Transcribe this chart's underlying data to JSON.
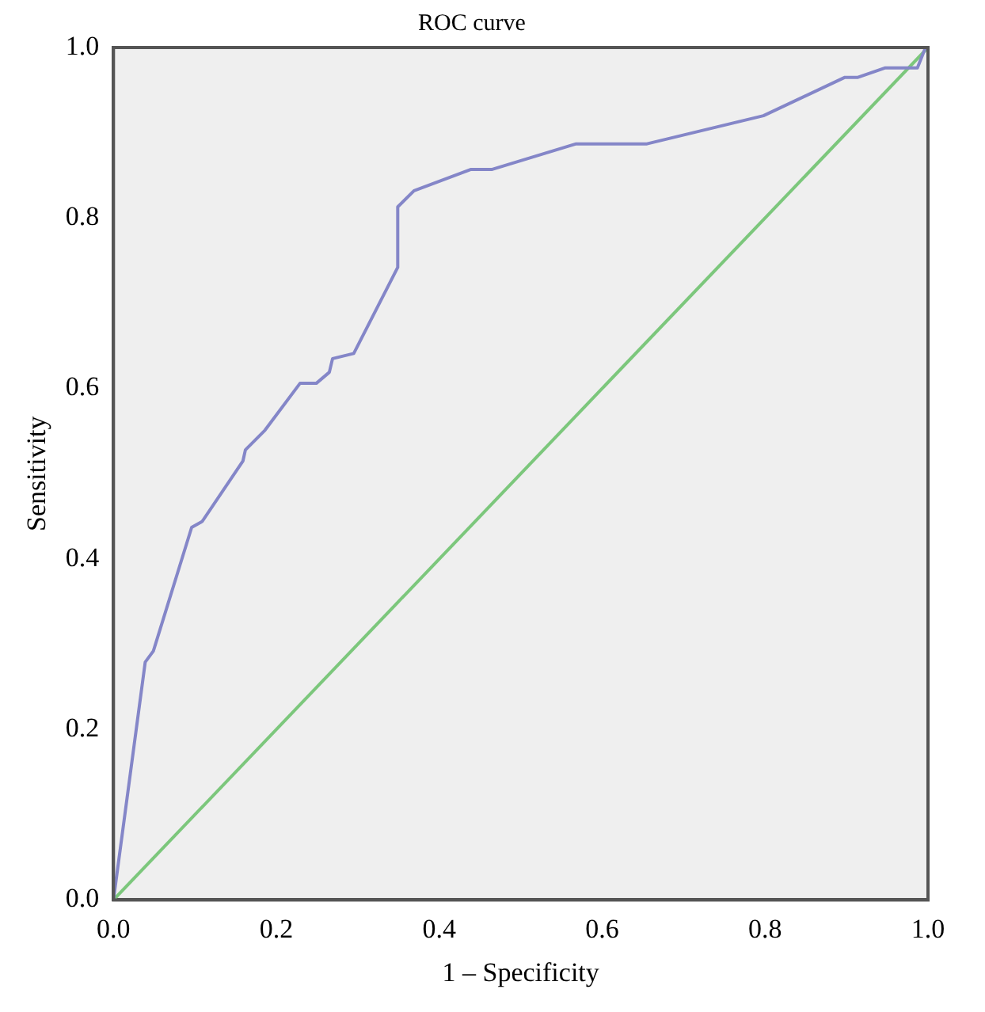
{
  "chart_data": {
    "type": "line",
    "title": "ROC curve",
    "xlabel": "1 – Specificity",
    "ylabel": "Sensitivity",
    "xlim": [
      0,
      1
    ],
    "ylim": [
      0,
      1
    ],
    "xticks": [
      {
        "value": 0,
        "label": "0.0"
      },
      {
        "value": 0.2,
        "label": "0.2"
      },
      {
        "value": 0.4,
        "label": "0.4"
      },
      {
        "value": 0.6,
        "label": "0.6"
      },
      {
        "value": 0.8,
        "label": "0.8"
      },
      {
        "value": 1,
        "label": "1.0"
      }
    ],
    "yticks": [
      {
        "value": 0,
        "label": "0.0"
      },
      {
        "value": 0.2,
        "label": "0.2"
      },
      {
        "value": 0.4,
        "label": "0.4"
      },
      {
        "value": 0.6,
        "label": "0.6"
      },
      {
        "value": 0.8,
        "label": "0.8"
      },
      {
        "value": 1,
        "label": "1.0"
      }
    ],
    "grid": false,
    "legend": false,
    "marker": "none",
    "line_style": "solid",
    "series": [
      {
        "color": "#8486c8",
        "x": [
          0,
          0.039,
          0.049,
          0.096,
          0.109,
          0.159,
          0.162,
          0.186,
          0.229,
          0.249,
          0.265,
          0.269,
          0.295,
          0.349,
          0.349,
          0.369,
          0.439,
          0.465,
          0.568,
          0.655,
          0.798,
          0.898,
          0.914,
          0.947,
          0.987,
          0.997,
          1
        ],
        "values": [
          0,
          0.279,
          0.292,
          0.437,
          0.444,
          0.515,
          0.528,
          0.551,
          0.606,
          0.606,
          0.619,
          0.635,
          0.641,
          0.742,
          0.813,
          0.832,
          0.857,
          0.857,
          0.887,
          0.887,
          0.92,
          0.965,
          0.965,
          0.976,
          0.976,
          1,
          1
        ]
      },
      {
        "color": "#7cc77c",
        "x": [
          0,
          1
        ],
        "values": [
          0,
          1
        ]
      }
    ]
  }
}
